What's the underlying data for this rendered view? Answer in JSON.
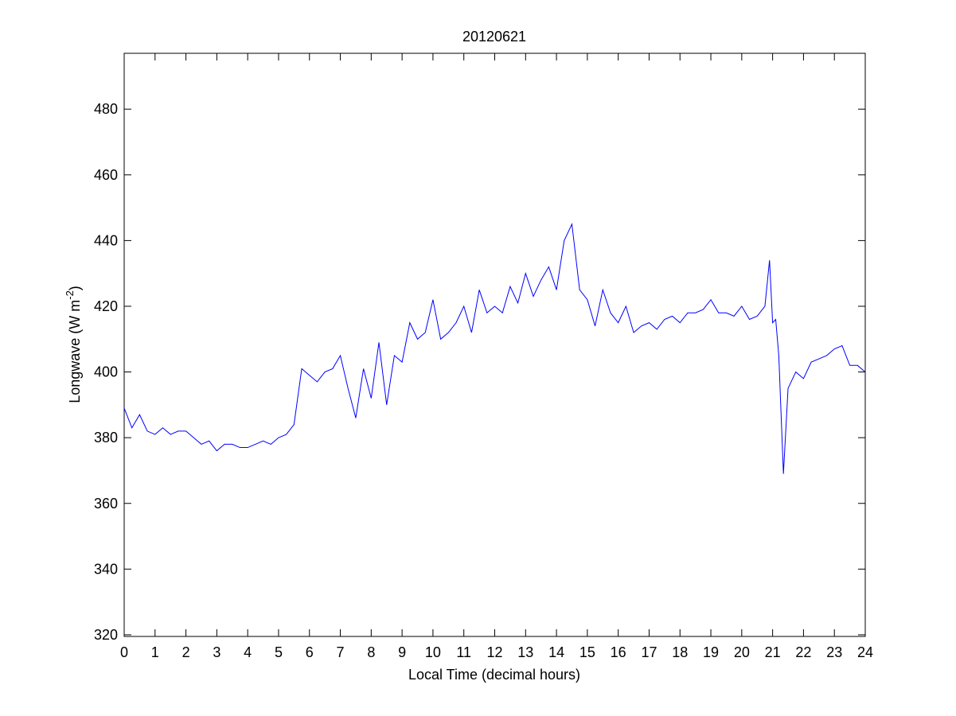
{
  "chart_data": {
    "type": "line",
    "title": "20120621",
    "x_label": "Local Time (decimal hours)",
    "y_label": [
      "Longwave (W m",
      "-2",
      ")"
    ],
    "x": [
      0,
      0.25,
      0.5,
      0.75,
      1,
      1.25,
      1.5,
      1.75,
      2,
      2.25,
      2.5,
      2.75,
      3,
      3.25,
      3.5,
      3.75,
      4,
      4.25,
      4.5,
      4.75,
      5,
      5.25,
      5.5,
      5.75,
      6,
      6.25,
      6.5,
      6.75,
      7,
      7.25,
      7.5,
      7.75,
      8,
      8.25,
      8.5,
      8.75,
      9,
      9.25,
      9.5,
      9.75,
      10,
      10.25,
      10.5,
      10.75,
      11,
      11.25,
      11.5,
      11.75,
      12,
      12.25,
      12.5,
      12.75,
      13,
      13.25,
      13.5,
      13.75,
      14,
      14.25,
      14.5,
      14.75,
      15,
      15.25,
      15.5,
      15.75,
      16,
      16.25,
      16.5,
      16.75,
      17,
      17.25,
      17.5,
      17.75,
      18,
      18.25,
      18.5,
      18.75,
      19,
      19.25,
      19.5,
      19.75,
      20,
      20.25,
      20.5,
      20.75,
      20.9,
      21,
      21.1,
      21.2,
      21.35,
      21.5,
      21.75,
      22,
      22.25,
      22.5,
      22.75,
      23,
      23.25,
      23.5,
      23.75,
      24
    ],
    "series": [
      {
        "color": "#0000ff",
        "values": [
          389,
          383,
          387,
          382,
          381,
          383,
          381,
          382,
          382,
          380,
          378,
          379,
          376,
          378,
          378,
          377,
          377,
          378,
          379,
          378,
          380,
          381,
          384,
          401,
          399,
          397,
          400,
          401,
          405,
          395,
          386,
          401,
          392,
          409,
          390,
          405,
          403,
          415,
          410,
          412,
          422,
          410,
          412,
          415,
          420,
          412,
          425,
          418,
          420,
          418,
          426,
          421,
          430,
          423,
          428,
          432,
          425,
          440,
          445,
          425,
          422,
          414,
          425,
          418,
          415,
          420,
          412,
          414,
          415,
          413,
          416,
          417,
          415,
          418,
          418,
          419,
          422,
          418,
          418,
          417,
          420,
          416,
          417,
          420,
          434,
          415,
          416,
          405,
          369,
          395,
          400,
          398,
          403,
          404,
          405,
          407,
          408,
          402,
          402,
          400
        ]
      }
    ],
    "xlim": [
      0,
      24
    ],
    "xticks": [
      0,
      1,
      2,
      3,
      4,
      5,
      6,
      7,
      8,
      9,
      10,
      11,
      12,
      13,
      14,
      15,
      16,
      17,
      18,
      19,
      20,
      21,
      22,
      23,
      24
    ],
    "ylim": [
      319.5,
      497
    ],
    "yticks": [
      320,
      340,
      360,
      380,
      400,
      420,
      440,
      460,
      480
    ],
    "grid": false
  }
}
